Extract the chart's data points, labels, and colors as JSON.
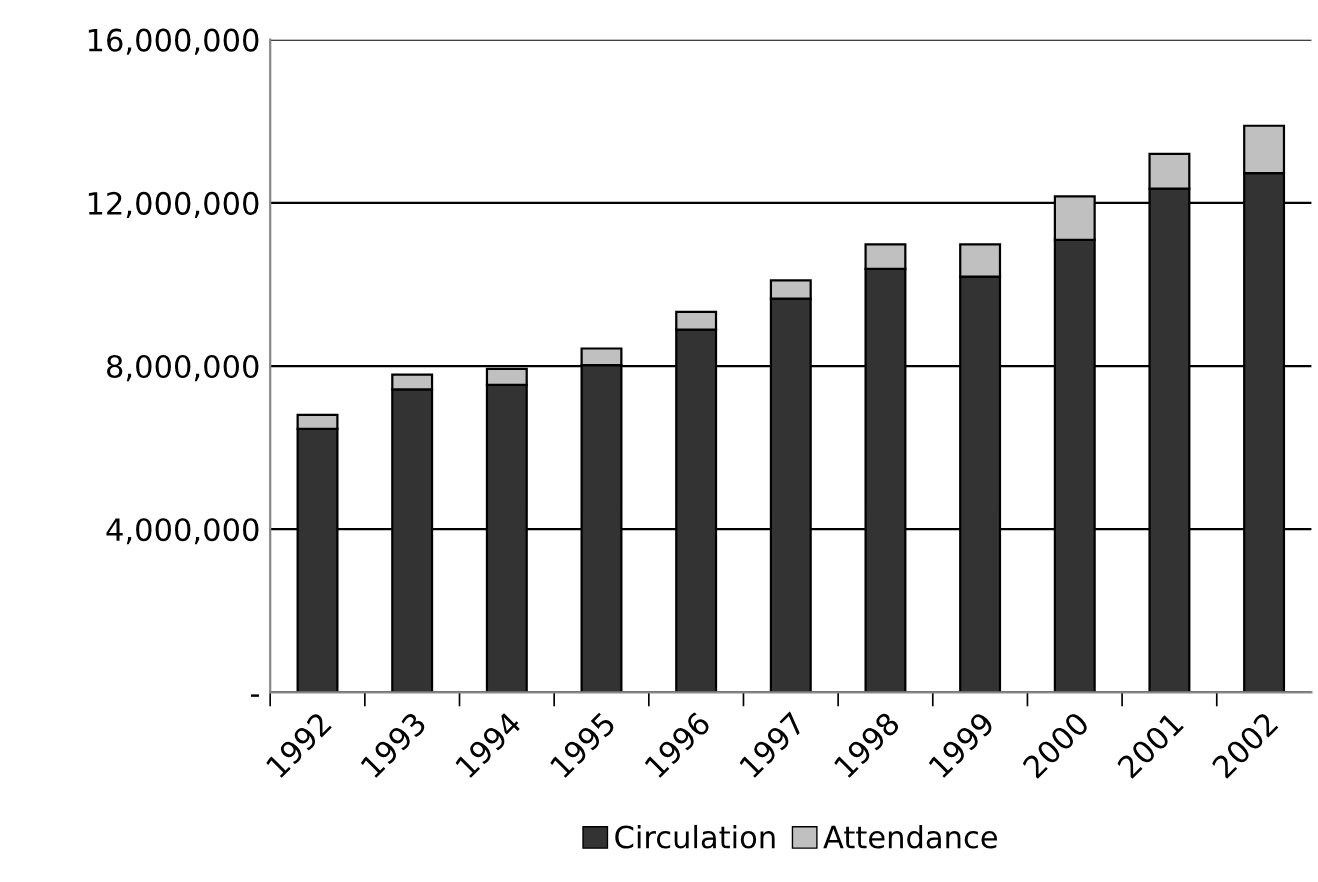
{
  "chart_data": {
    "type": "bar",
    "stacked": true,
    "categories": [
      "1992",
      "1993",
      "1994",
      "1995",
      "1996",
      "1997",
      "1998",
      "1999",
      "2000",
      "2001",
      "2002"
    ],
    "series": [
      {
        "name": "Circulation",
        "color": "#333333",
        "values": [
          6460000,
          7430000,
          7540000,
          8020000,
          8890000,
          9650000,
          10380000,
          10190000,
          11090000,
          12350000,
          12730000
        ]
      },
      {
        "name": "Attendance",
        "color": "#c0c0c0",
        "values": [
          340000,
          360000,
          390000,
          410000,
          440000,
          450000,
          600000,
          790000,
          1070000,
          850000,
          1160000
        ]
      }
    ],
    "ylim": [
      0,
      16000000
    ],
    "yticks": [
      {
        "value": 0,
        "label": "-"
      },
      {
        "value": 4000000,
        "label": "4,000,000"
      },
      {
        "value": 8000000,
        "label": "8,000,000"
      },
      {
        "value": 12000000,
        "label": "12,000,000"
      },
      {
        "value": 16000000,
        "label": "16,000,000"
      }
    ],
    "grid": "y",
    "legend": "bottom"
  }
}
